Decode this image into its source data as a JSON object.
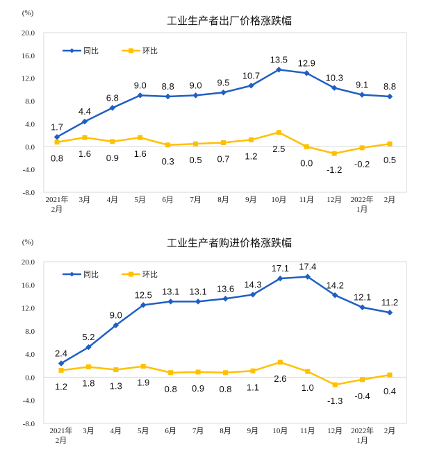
{
  "colors": {
    "yoy": "#1f5fc4",
    "mom": "#ffc000"
  },
  "chart_data": [
    {
      "type": "line",
      "title": "工业生产者出厂价格涨跌幅",
      "unit": "(%)",
      "ylim": [
        -8,
        20
      ],
      "yticks": [
        "20.0",
        "16.0",
        "12.0",
        "8.0",
        "4.0",
        "0.0",
        "-4.0",
        "-8.0"
      ],
      "categories": [
        [
          "2021年",
          "2月"
        ],
        [
          "3月"
        ],
        [
          "4月"
        ],
        [
          "5月"
        ],
        [
          "6月"
        ],
        [
          "7月"
        ],
        [
          "8月"
        ],
        [
          "9月"
        ],
        [
          "10月"
        ],
        [
          "11月"
        ],
        [
          "12月"
        ],
        [
          "2022年",
          "1月"
        ],
        [
          "2月"
        ]
      ],
      "legend_position": "top-left",
      "series": [
        {
          "name": "同比",
          "values": [
            1.7,
            4.4,
            6.8,
            9.0,
            8.8,
            9.0,
            9.5,
            10.7,
            13.5,
            12.9,
            10.3,
            9.1,
            8.8
          ],
          "labels": [
            "1.7",
            "4.4",
            "6.8",
            "9.0",
            "8.8",
            "9.0",
            "9.5",
            "10.7",
            "13.5",
            "12.9",
            "10.3",
            "9.1",
            "8.8"
          ]
        },
        {
          "name": "环比",
          "values": [
            0.8,
            1.6,
            0.9,
            1.6,
            0.3,
            0.5,
            0.7,
            1.2,
            2.5,
            0.0,
            -1.2,
            -0.2,
            0.5
          ],
          "labels": [
            "0.8",
            "1.6",
            "0.9",
            "1.6",
            "0.3",
            "0.5",
            "0.7",
            "1.2",
            "2.5",
            "0.0",
            "-1.2",
            "-0.2",
            "0.5"
          ]
        }
      ]
    },
    {
      "type": "line",
      "title": "工业生产者购进价格涨跌幅",
      "unit": "(%)",
      "ylim": [
        -8,
        20
      ],
      "yticks": [
        "20.0",
        "16.0",
        "12.0",
        "8.0",
        "4.0",
        "0.0",
        "-4.0",
        "-8.0"
      ],
      "categories": [
        [
          "2021年",
          "2月"
        ],
        [
          "3月"
        ],
        [
          "4月"
        ],
        [
          "5月"
        ],
        [
          "6月"
        ],
        [
          "7月"
        ],
        [
          "8月"
        ],
        [
          "9月"
        ],
        [
          "10月"
        ],
        [
          "11月"
        ],
        [
          "12月"
        ],
        [
          "2022年",
          "1月"
        ],
        [
          "2月"
        ]
      ],
      "legend_position": "top-left",
      "series": [
        {
          "name": "同比",
          "values": [
            2.4,
            5.2,
            9.0,
            12.5,
            13.1,
            13.1,
            13.6,
            14.3,
            17.1,
            17.4,
            14.2,
            12.1,
            11.2
          ],
          "labels": [
            "2.4",
            "5.2",
            "9.0",
            "12.5",
            "13.1",
            "13.1",
            "13.6",
            "14.3",
            "17.1",
            "17.4",
            "14.2",
            "12.1",
            "11.2"
          ]
        },
        {
          "name": "环比",
          "values": [
            1.2,
            1.8,
            1.3,
            1.9,
            0.8,
            0.9,
            0.8,
            1.1,
            2.6,
            1.0,
            -1.3,
            -0.4,
            0.4
          ],
          "labels": [
            "1.2",
            "1.8",
            "1.3",
            "1.9",
            "0.8",
            "0.9",
            "0.8",
            "1.1",
            "2.6",
            "1.0",
            "-1.3",
            "-0.4",
            "0.4"
          ]
        }
      ]
    }
  ]
}
